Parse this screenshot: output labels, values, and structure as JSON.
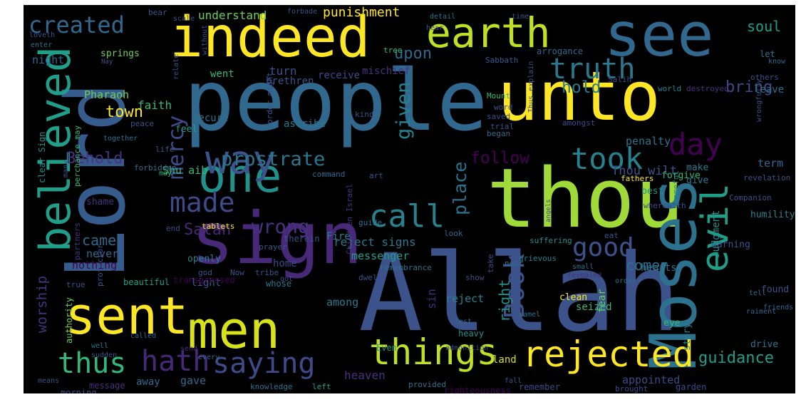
{
  "image": {
    "background": "#000000",
    "frame_background": "#ffffff",
    "palette": [
      "#440154",
      "#46327e",
      "#365c8d",
      "#277f8e",
      "#1fa187",
      "#4ac16d",
      "#a0da39",
      "#fde725"
    ]
  },
  "words": [
    {
      "text": "Allah",
      "color": "#3b528b"
    },
    {
      "text": "people",
      "color": "#31688e"
    },
    {
      "text": "Lord",
      "color": "#365c8d"
    },
    {
      "text": "thou",
      "color": "#a0da39"
    },
    {
      "text": "sign",
      "color": "#482878"
    },
    {
      "text": "Moses",
      "color": "#2c728e"
    },
    {
      "text": "unto",
      "color": "#fde725"
    },
    {
      "text": "see",
      "color": "#31688e"
    },
    {
      "text": "indeed",
      "color": "#fde725"
    },
    {
      "text": "sent",
      "color": "#fde725"
    },
    {
      "text": "men",
      "color": "#d8e219"
    },
    {
      "text": "one",
      "color": "#21918c"
    },
    {
      "text": "earth",
      "color": "#c2df23"
    },
    {
      "text": "believed",
      "color": "#1f9e89"
    },
    {
      "text": "way",
      "color": "#3b528b"
    },
    {
      "text": "evil",
      "color": "#1f9e89"
    },
    {
      "text": "things",
      "color": "#c2df23"
    },
    {
      "text": "rejected",
      "color": "#fde725"
    },
    {
      "text": "hath",
      "color": "#482878"
    },
    {
      "text": "saying",
      "color": "#3e4a89"
    },
    {
      "text": "thus",
      "color": "#35b779"
    },
    {
      "text": "call",
      "color": "#26828e"
    },
    {
      "text": "took",
      "color": "#26828e"
    },
    {
      "text": "made",
      "color": "#3e4a89"
    },
    {
      "text": "created",
      "color": "#31688e"
    },
    {
      "text": "truth",
      "color": "#2a788e"
    },
    {
      "text": "day",
      "color": "#440154"
    },
    {
      "text": "Book",
      "color": "#3b528b"
    },
    {
      "text": "good",
      "color": "#3b528b"
    },
    {
      "text": "mercy",
      "color": "#3e4a89"
    },
    {
      "text": "prostrate",
      "color": "#2a788e"
    },
    {
      "text": "given",
      "color": "#26828e"
    },
    {
      "text": "place",
      "color": "#2c728e"
    },
    {
      "text": "wrong",
      "color": "#46327e"
    },
    {
      "text": "follow",
      "color": "#440154"
    },
    {
      "text": "hold",
      "color": "#2a788e"
    },
    {
      "text": "bring",
      "color": "#3e4a89"
    },
    {
      "text": "guidance",
      "color": "#1f9e89"
    },
    {
      "text": "upon",
      "color": "#31688e"
    },
    {
      "text": "Satan",
      "color": "#482878"
    },
    {
      "text": "soul",
      "color": "#1f9e89"
    },
    {
      "text": "Behold",
      "color": "#46327e"
    },
    {
      "text": "town",
      "color": "#fde725"
    },
    {
      "text": "worship",
      "color": "#46327e"
    },
    {
      "text": "came",
      "color": "#31688e"
    },
    {
      "text": "right",
      "color": "#21918c"
    },
    {
      "text": "come",
      "color": "#2c728e"
    },
    {
      "text": "punishment",
      "color": "#fde725"
    },
    {
      "text": "understand",
      "color": "#6ece58"
    },
    {
      "text": "Pharaoh",
      "color": "#6ece58"
    },
    {
      "text": "turn",
      "color": "#3b528b"
    },
    {
      "text": "faith",
      "color": "#35b779"
    },
    {
      "text": "night",
      "color": "#31688e"
    },
    {
      "text": "leave",
      "color": "#2c728e"
    },
    {
      "text": "sin",
      "color": "#482878"
    },
    {
      "text": "Shu aib",
      "color": "#35b779"
    },
    {
      "text": "reject signs",
      "color": "#2a788e"
    },
    {
      "text": "Thou wilt",
      "color": "#3b528b"
    },
    {
      "text": "term",
      "color": "#31688e"
    },
    {
      "text": "penalty",
      "color": "#2c728e"
    },
    {
      "text": "heaven",
      "color": "#46327e"
    },
    {
      "text": "appointed",
      "color": "#3e4a89"
    },
    {
      "text": "land",
      "color": "#d8e219"
    },
    {
      "text": "gave",
      "color": "#31688e"
    },
    {
      "text": "away",
      "color": "#31688e"
    },
    {
      "text": "among",
      "color": "#2a788e"
    },
    {
      "text": "reject",
      "color": "#26828e"
    },
    {
      "text": "messenger",
      "color": "#1f9e89"
    },
    {
      "text": "Fire",
      "color": "#26828e"
    },
    {
      "text": "home",
      "color": "#3e4a89"
    },
    {
      "text": "never",
      "color": "#31688e"
    },
    {
      "text": "nothing",
      "color": "#440154"
    },
    {
      "text": "light",
      "color": "#365c8d"
    },
    {
      "text": "receive",
      "color": "#3e4a89"
    },
    {
      "text": "mischief",
      "color": "#46327e"
    },
    {
      "text": "brethren",
      "color": "#3b528b"
    },
    {
      "text": "went",
      "color": "#35b779"
    },
    {
      "text": "secure",
      "color": "#2c728e"
    },
    {
      "text": "feel",
      "color": "#1f9e89"
    },
    {
      "text": "ascribe",
      "color": "#2a788e"
    },
    {
      "text": "springs",
      "color": "#6ece58"
    },
    {
      "text": "arrogance",
      "color": "#31688e"
    },
    {
      "text": "Salih",
      "color": "#3e4a89"
    },
    {
      "text": "Sabbath",
      "color": "#365c8d"
    },
    {
      "text": "shame",
      "color": "#46327e"
    },
    {
      "text": "openly",
      "color": "#26828e"
    },
    {
      "text": "clear Sign",
      "color": "#21918c"
    },
    {
      "text": "give",
      "color": "#2a788e"
    },
    {
      "text": "make",
      "color": "#2a788e"
    },
    {
      "text": "best",
      "color": "#21918c"
    },
    {
      "text": "forgive",
      "color": "#35b779"
    },
    {
      "text": "Judgment",
      "color": "#21918c"
    },
    {
      "text": "Children Adam",
      "color": "#1f9e89"
    },
    {
      "text": "warning",
      "color": "#3b528b"
    },
    {
      "text": "hearts",
      "color": "#2c728e"
    },
    {
      "text": "humility",
      "color": "#26828e"
    },
    {
      "text": "fear",
      "color": "#6ece58"
    },
    {
      "text": "seized",
      "color": "#35b779"
    },
    {
      "text": "clean",
      "color": "#fde725"
    },
    {
      "text": "found",
      "color": "#3b528b"
    },
    {
      "text": "eye",
      "color": "#35b779"
    },
    {
      "text": "drive",
      "color": "#2c728e"
    },
    {
      "text": "garden",
      "color": "#3e4a89"
    },
    {
      "text": "remember",
      "color": "#3e4a89"
    },
    {
      "text": "righteousness",
      "color": "#440154"
    },
    {
      "text": "knowledge",
      "color": "#2c728e"
    },
    {
      "text": "provided",
      "color": "#2c728e"
    },
    {
      "text": "left",
      "color": "#1f9e89"
    },
    {
      "text": "morning",
      "color": "#3e4a89"
    },
    {
      "text": "message",
      "color": "#46327e"
    },
    {
      "text": "fulfillment",
      "color": "#482878"
    },
    {
      "text": "every time",
      "color": "#fde725"
    },
    {
      "text": "brought",
      "color": "#3e4a89"
    },
    {
      "text": "story",
      "color": "#26828e"
    },
    {
      "text": "heavy",
      "color": "#21918c"
    },
    {
      "text": "Even",
      "color": "#1f9e89"
    },
    {
      "text": "authority",
      "color": "#6ece58"
    },
    {
      "text": "beautiful",
      "color": "#1f9e89"
    },
    {
      "text": "transgressed",
      "color": "#440154"
    },
    {
      "text": "whose",
      "color": "#2a788e"
    },
    {
      "text": "true",
      "color": "#3b528b"
    },
    {
      "text": "partners",
      "color": "#46327e"
    },
    {
      "text": "protector",
      "color": "#3b528b"
    },
    {
      "text": "tablets",
      "color": "#fde725"
    },
    {
      "text": "end",
      "color": "#3e4a89"
    },
    {
      "text": "prayer",
      "color": "#3b528b"
    },
    {
      "text": "guide",
      "color": "#2c728e"
    },
    {
      "text": "look",
      "color": "#31688e"
    },
    {
      "text": "therein",
      "color": "#3b528b"
    },
    {
      "text": "tribe",
      "color": "#3b528b"
    },
    {
      "text": "Now",
      "color": "#3b528b"
    },
    {
      "text": "god",
      "color": "#3b528b"
    },
    {
      "text": "got",
      "color": "#3b528b"
    },
    {
      "text": "show",
      "color": "#3e4a89"
    },
    {
      "text": "near",
      "color": "#2c728e"
    },
    {
      "text": "take",
      "color": "#3e4a89"
    },
    {
      "text": "remembrance",
      "color": "#2c728e"
    },
    {
      "text": "suffering",
      "color": "#21918c"
    },
    {
      "text": "grievous",
      "color": "#26828e"
    },
    {
      "text": "command",
      "color": "#31688e"
    },
    {
      "text": "art",
      "color": "#3b528b"
    },
    {
      "text": "eat",
      "color": "#3b528b"
    },
    {
      "text": "fathers",
      "color": "#fde725"
    },
    {
      "text": "revelation",
      "color": "#3b528b"
    },
    {
      "text": "Companion",
      "color": "#3b528b"
    },
    {
      "text": "wherewith",
      "color": "#3e4a89"
    },
    {
      "text": "shameful",
      "color": "#26828e"
    },
    {
      "text": "world",
      "color": "#26828e"
    },
    {
      "text": "destroyed",
      "color": "#46327e"
    },
    {
      "text": "others",
      "color": "#3b528b"
    },
    {
      "text": "Mount",
      "color": "#35b779"
    },
    {
      "text": "word",
      "color": "#3b528b"
    },
    {
      "text": "saved",
      "color": "#3b528b"
    },
    {
      "text": "trial",
      "color": "#3b528b"
    },
    {
      "text": "kind",
      "color": "#3b528b"
    },
    {
      "text": "amongst",
      "color": "#3e4a89"
    },
    {
      "text": "began",
      "color": "#31688e"
    },
    {
      "text": "life",
      "color": "#3b528b"
    },
    {
      "text": "forbidden",
      "color": "#2c728e"
    },
    {
      "text": "peace",
      "color": "#3b528b"
    },
    {
      "text": "together",
      "color": "#2c728e"
    },
    {
      "text": "perchance may",
      "color": "#35b779"
    },
    {
      "text": "order might",
      "color": "#3b528b"
    },
    {
      "text": "bear",
      "color": "#3b528b"
    },
    {
      "text": "scale",
      "color": "#3b528b"
    },
    {
      "text": "forbade",
      "color": "#3b528b"
    },
    {
      "text": "detail",
      "color": "#2c728e"
    },
    {
      "text": "time",
      "color": "#3b528b"
    },
    {
      "text": "hear",
      "color": "#3b528b"
    },
    {
      "text": "tree",
      "color": "#35b779"
    },
    {
      "text": "let",
      "color": "#2c728e"
    },
    {
      "text": "know",
      "color": "#31688e"
    },
    {
      "text": "loveth",
      "color": "#3b528b"
    },
    {
      "text": "enter",
      "color": "#2c728e"
    },
    {
      "text": "without",
      "color": "#3b528b"
    },
    {
      "text": "relate",
      "color": "#3b528b"
    },
    {
      "text": "Nay",
      "color": "#3b528b"
    },
    {
      "text": "Thus explain",
      "color": "#3b528b"
    },
    {
      "text": "wrongfully",
      "color": "#3b528b"
    },
    {
      "text": "may",
      "color": "#35b779"
    },
    {
      "text": "many",
      "color": "#3b528b"
    },
    {
      "text": "angels",
      "color": "#3e4a89"
    },
    {
      "text": "small",
      "color": "#2c728e"
    },
    {
      "text": "revealed",
      "color": "#46327e"
    },
    {
      "text": "order",
      "color": "#2c728e"
    },
    {
      "text": "raiment",
      "color": "#31688e"
    },
    {
      "text": "friends",
      "color": "#31688e"
    },
    {
      "text": "tell",
      "color": "#31688e"
    },
    {
      "text": "Children Israel",
      "color": "#46327e"
    },
    {
      "text": "dwell",
      "color": "#3b528b"
    },
    {
      "text": "lest",
      "color": "#31688e"
    },
    {
      "text": "camel",
      "color": "#2c728e"
    },
    {
      "text": "admonition",
      "color": "#3b528b"
    },
    {
      "text": "fall",
      "color": "#3b528b"
    },
    {
      "text": "well",
      "color": "#2c728e"
    },
    {
      "text": "means",
      "color": "#3b528b"
    },
    {
      "text": "called",
      "color": "#31688e"
    },
    {
      "text": "sudden",
      "color": "#3b528b"
    },
    {
      "text": "send",
      "color": "#46327e"
    },
    {
      "text": "every",
      "color": "#31688e"
    }
  ]
}
